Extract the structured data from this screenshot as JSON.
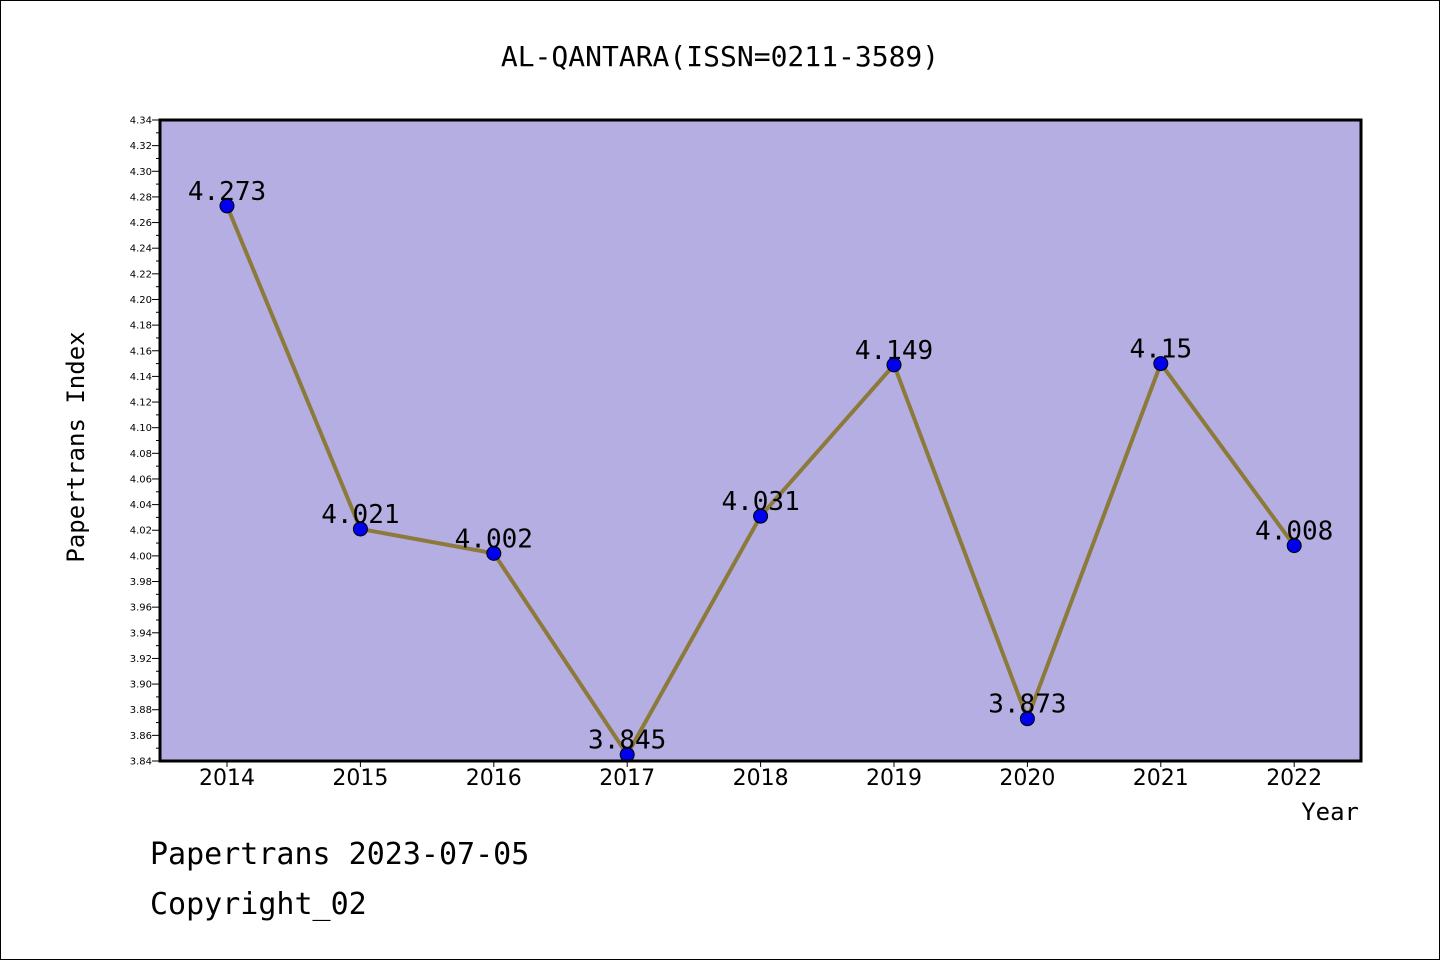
{
  "chart_data": {
    "type": "line",
    "title": "AL-QANTARA(ISSN=0211-3589)",
    "xlabel": "Year",
    "ylabel": "Papertrans Index",
    "categories": [
      "2014",
      "2015",
      "2016",
      "2017",
      "2018",
      "2019",
      "2020",
      "2021",
      "2022"
    ],
    "series": [
      {
        "values": [
          4.273,
          4.021,
          4.002,
          3.845,
          4.031,
          4.149,
          3.873,
          4.15,
          4.008
        ],
        "data_labels": [
          "4.273",
          "4.021",
          "4.002",
          "3.845",
          "4.031",
          "4.149",
          "3.873",
          "4.15",
          "4.008"
        ]
      }
    ],
    "ylim": [
      3.84,
      4.34
    ],
    "yticks": [
      "3.84",
      "3.86",
      "3.88",
      "3.90",
      "3.92",
      "3.94",
      "3.96",
      "3.98",
      "4.00",
      "4.02",
      "4.04",
      "4.06",
      "4.08",
      "4.10",
      "4.12",
      "4.14",
      "4.16",
      "4.18",
      "4.20",
      "4.22",
      "4.24",
      "4.26",
      "4.28",
      "4.30",
      "4.32",
      "4.34"
    ],
    "grid": false,
    "colors": {
      "plot_background": "#b5aee2",
      "line": "#8c7a3a",
      "marker": "#0000ee",
      "page_background": "#ffffff"
    }
  },
  "footer": {
    "line1": "Papertrans 2023-07-05",
    "line2": "Copyright_02"
  }
}
